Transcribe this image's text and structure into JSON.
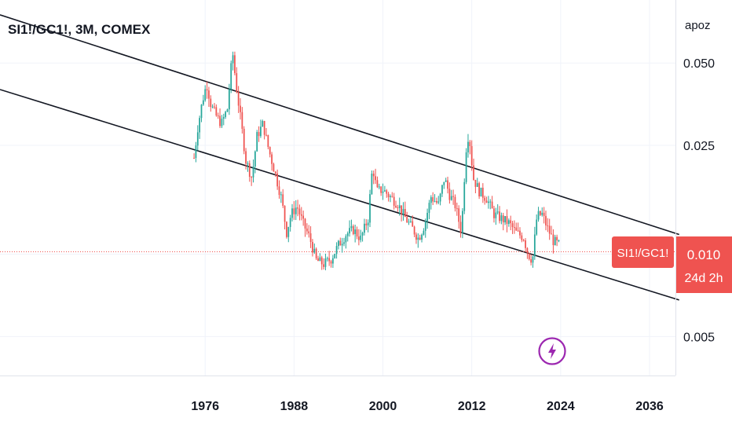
{
  "chart_data": {
    "type": "candlestick",
    "title": "SI1!/GC1!, 3M, COMEX",
    "username": "apoz",
    "scale": "log",
    "y_ticks": [
      0.05,
      0.025,
      0.01,
      0.005
    ],
    "y_tick_labels": [
      "0.050",
      "0.025",
      "0.010",
      "0.005"
    ],
    "x_ticks": [
      1976,
      1988,
      2000,
      2012,
      2024,
      2036
    ],
    "x_tick_labels": [
      "1976",
      "1988",
      "2000",
      "2012",
      "2024",
      "2036"
    ],
    "x_range": [
      1948.3,
      2039.5
    ],
    "y_range": [
      0.0036,
      0.085
    ],
    "price_line": 0.0102,
    "price_label": {
      "symbol": "SI1!/GC1!",
      "value": "0.010",
      "countdown": "24d 2h"
    },
    "trend_lines": [
      {
        "x": [
          1948.3,
          2040.0
        ],
        "y": [
          0.075,
          0.0118
        ]
      },
      {
        "x": [
          1948.3,
          2040.0
        ],
        "y": [
          0.04,
          0.0068
        ]
      }
    ],
    "anchors": [
      [
        1974.5,
        0.0225
      ],
      [
        1975.0,
        0.029
      ],
      [
        1975.6,
        0.036
      ],
      [
        1976.2,
        0.042
      ],
      [
        1976.8,
        0.035
      ],
      [
        1977.5,
        0.032
      ],
      [
        1978.2,
        0.03
      ],
      [
        1979.0,
        0.034
      ],
      [
        1979.7,
        0.055
      ],
      [
        1980.2,
        0.041
      ],
      [
        1980.8,
        0.031
      ],
      [
        1981.5,
        0.022
      ],
      [
        1982.3,
        0.019
      ],
      [
        1983.0,
        0.027
      ],
      [
        1983.8,
        0.03
      ],
      [
        1984.6,
        0.024
      ],
      [
        1985.4,
        0.02
      ],
      [
        1986.3,
        0.016
      ],
      [
        1987.0,
        0.012
      ],
      [
        1987.6,
        0.014
      ],
      [
        1988.4,
        0.015
      ],
      [
        1989.2,
        0.013
      ],
      [
        1990.1,
        0.0115
      ],
      [
        1991.0,
        0.0095
      ],
      [
        1992.0,
        0.0092
      ],
      [
        1993.0,
        0.0096
      ],
      [
        1994.0,
        0.0108
      ],
      [
        1995.0,
        0.0118
      ],
      [
        1996.0,
        0.0123
      ],
      [
        1997.0,
        0.0114
      ],
      [
        1998.0,
        0.0135
      ],
      [
        1998.6,
        0.021
      ],
      [
        1999.2,
        0.017
      ],
      [
        2000.0,
        0.0172
      ],
      [
        2001.0,
        0.0162
      ],
      [
        2002.0,
        0.0153
      ],
      [
        2003.0,
        0.0136
      ],
      [
        2004.0,
        0.0124
      ],
      [
        2004.8,
        0.0114
      ],
      [
        2005.6,
        0.0128
      ],
      [
        2006.5,
        0.0162
      ],
      [
        2007.5,
        0.0152
      ],
      [
        2008.3,
        0.019
      ],
      [
        2009.0,
        0.0165
      ],
      [
        2009.8,
        0.015
      ],
      [
        2010.6,
        0.012
      ],
      [
        2011.2,
        0.024
      ],
      [
        2011.6,
        0.028
      ],
      [
        2012.2,
        0.019
      ],
      [
        2013.0,
        0.017
      ],
      [
        2014.0,
        0.016
      ],
      [
        2015.0,
        0.014
      ],
      [
        2016.0,
        0.0135
      ],
      [
        2017.0,
        0.013
      ],
      [
        2018.0,
        0.012
      ],
      [
        2019.0,
        0.0115
      ],
      [
        2019.6,
        0.01
      ],
      [
        2020.2,
        0.0095
      ],
      [
        2020.8,
        0.0138
      ],
      [
        2021.5,
        0.014
      ],
      [
        2022.2,
        0.0125
      ],
      [
        2023.0,
        0.0112
      ],
      [
        2023.8,
        0.0108
      ]
    ],
    "colors": {
      "up": "#26a69a",
      "down": "#ef5350",
      "trend": "#131722",
      "price_line": "#ef5350",
      "label_bg": "#ef5350",
      "label_text": "#ffffff",
      "grid": "#f0f3fa",
      "axis_text": "#131722",
      "lightning": "#9c27b0"
    },
    "icons": [
      "lightning-icon"
    ]
  }
}
